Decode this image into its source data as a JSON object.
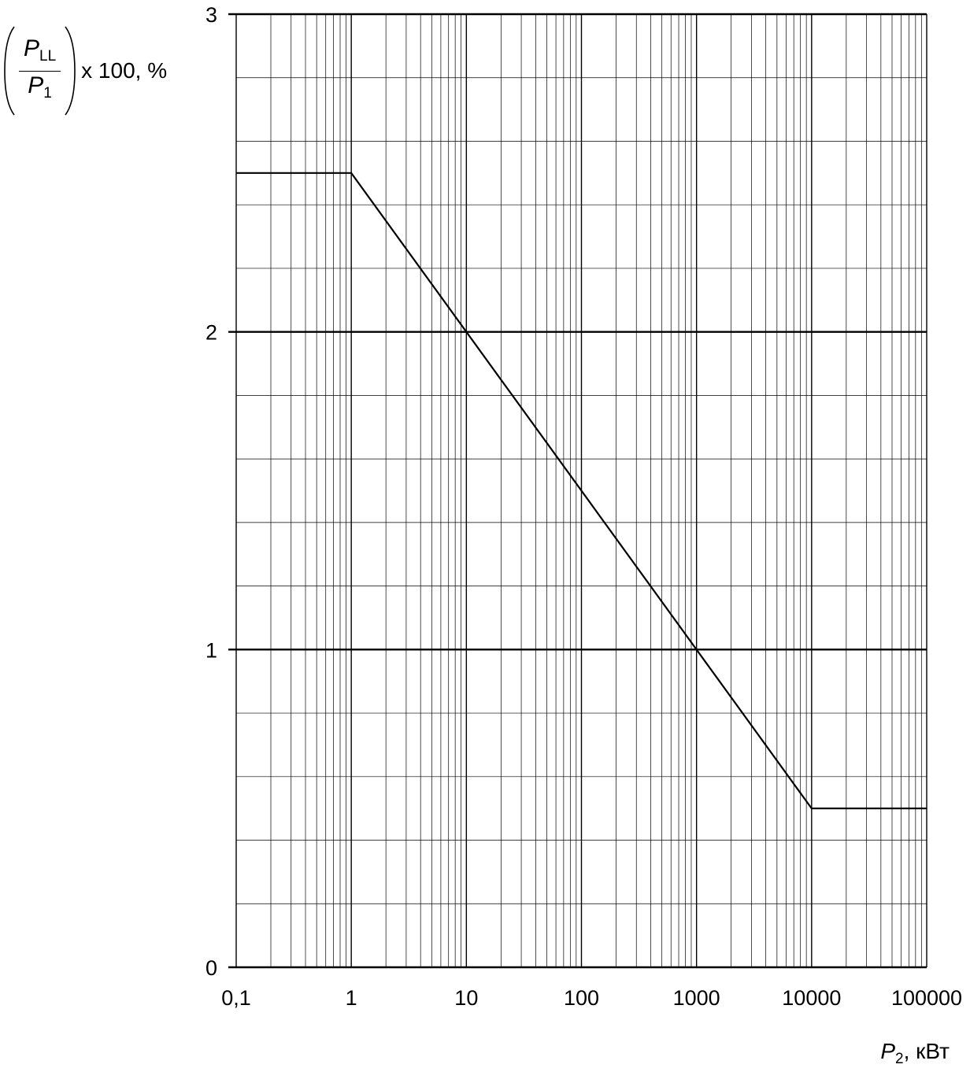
{
  "chart_data": {
    "type": "line",
    "x_scale": "log",
    "xlim": [
      0.1,
      100000
    ],
    "ylim": [
      0,
      3
    ],
    "grid": true,
    "x_ticks": [
      0.1,
      1,
      10,
      100,
      1000,
      10000,
      100000
    ],
    "x_tick_labels": [
      "0,1",
      "1",
      "10",
      "100",
      "1000",
      "10000",
      "100000"
    ],
    "y_ticks": [
      0,
      1,
      2,
      3
    ],
    "y_tick_labels": [
      "0",
      "1",
      "2",
      "3"
    ],
    "series": [
      {
        "x": [
          0.1,
          1,
          10000,
          100000
        ],
        "y": [
          2.5,
          2.5,
          0.5,
          0.5
        ]
      }
    ],
    "ylabel": {
      "numerator_main": "P",
      "numerator_sub": "LL",
      "denominator_main": "P",
      "denominator_sub": "1",
      "suffix": "x 100, %"
    },
    "xlabel": {
      "main": "P",
      "sub": "2",
      "suffix": ", кВт"
    }
  },
  "colors": {
    "line": "#000000",
    "grid": "#000000",
    "background": "#ffffff"
  }
}
